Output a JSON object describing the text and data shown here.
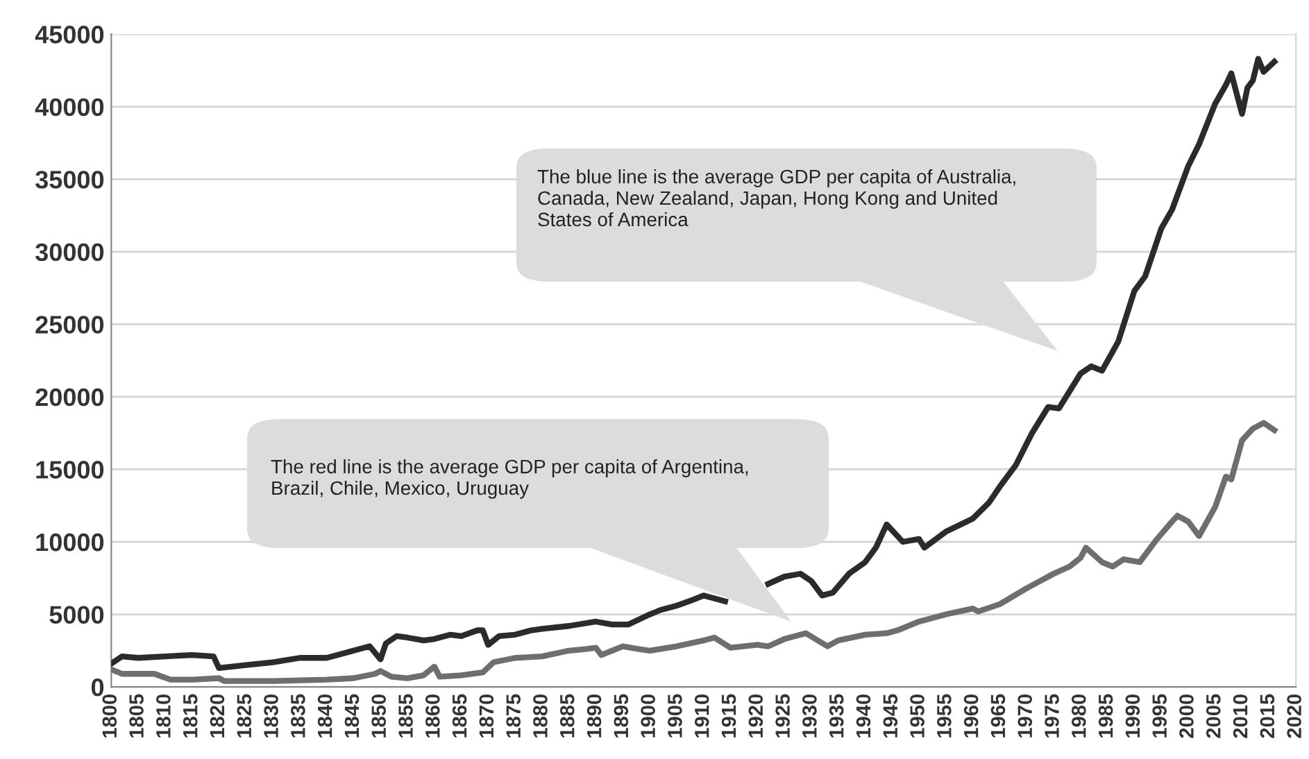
{
  "chart_data": {
    "type": "line",
    "xlim": [
      1800,
      2020
    ],
    "xticks": [
      1800,
      1805,
      1810,
      1815,
      1820,
      1825,
      1830,
      1835,
      1840,
      1845,
      1850,
      1855,
      1860,
      1865,
      1870,
      1875,
      1880,
      1885,
      1890,
      1895,
      1900,
      1905,
      1910,
      1915,
      1920,
      1925,
      1930,
      1935,
      1940,
      1945,
      1950,
      1955,
      1960,
      1965,
      1970,
      1975,
      1980,
      1985,
      1990,
      1995,
      2000,
      2005,
      2010,
      2015,
      2020
    ],
    "ylim": [
      0,
      45000
    ],
    "yticks": [
      0,
      5000,
      10000,
      15000,
      20000,
      25000,
      30000,
      35000,
      40000,
      45000
    ],
    "grid": "y",
    "line_style": "solid",
    "series": [
      {
        "color": "#2b2b2b",
        "x": [
          1800,
          1802,
          1805,
          1810,
          1815,
          1819,
          1820,
          1825,
          1830,
          1835,
          1840,
          1845,
          1848,
          1850,
          1851,
          1853,
          1855,
          1858,
          1860,
          1863,
          1865,
          1868,
          1869,
          1870,
          1872,
          1875,
          1878,
          1880,
          1885,
          1890,
          1893,
          1896,
          1900,
          1902,
          1905,
          1908,
          1910,
          1912,
          1914,
          1916,
          1919,
          1922,
          1925,
          1928,
          1930,
          1932,
          1934,
          1937,
          1940,
          1942,
          1944,
          1947,
          1950,
          1951,
          1955,
          1960,
          1963,
          1965,
          1968,
          1971,
          1974,
          1976,
          1980,
          1982,
          1984,
          1987,
          1990,
          1992,
          1995,
          1997,
          2000,
          2002,
          2005,
          2007,
          2008,
          2010,
          2011,
          2012,
          2013,
          2014,
          2016
        ],
        "values": [
          1600,
          2100,
          2000,
          2100,
          2200,
          2100,
          1300,
          1500,
          1700,
          2000,
          2000,
          2500,
          2800,
          1900,
          3000,
          3500,
          3400,
          3200,
          3300,
          3600,
          3500,
          3900,
          3900,
          2900,
          3500,
          3600,
          3900,
          4000,
          4200,
          4500,
          4300,
          4300,
          5000,
          5300,
          5600,
          6000,
          6300,
          6100,
          5900,
          null,
          null,
          7100,
          7600,
          7800,
          7300,
          6300,
          6500,
          7800,
          8600,
          9600,
          11200,
          10000,
          10200,
          9600,
          10700,
          11600,
          12700,
          13800,
          15300,
          17500,
          19300,
          19200,
          21600,
          22100,
          21800,
          23800,
          27300,
          28300,
          31600,
          32900,
          35900,
          37400,
          40200,
          41500,
          42300,
          39500,
          41300,
          41800,
          43300,
          42400,
          43100
        ]
      },
      {
        "color": "#6e6e6e",
        "x": [
          1800,
          1802,
          1808,
          1811,
          1815,
          1820,
          1821,
          1830,
          1840,
          1845,
          1849,
          1850,
          1852,
          1855,
          1858,
          1860,
          1861,
          1865,
          1869,
          1871,
          1875,
          1880,
          1885,
          1888,
          1890,
          1891,
          1895,
          1898,
          1900,
          1905,
          1910,
          1912,
          1915,
          1920,
          1922,
          1925,
          1929,
          1933,
          1935,
          1940,
          1944,
          1946,
          1950,
          1955,
          1960,
          1961,
          1965,
          1970,
          1975,
          1978,
          1980,
          1981,
          1984,
          1986,
          1988,
          1991,
          1994,
          1997,
          1998,
          2000,
          2002,
          2005,
          2007,
          2008,
          2010,
          2012,
          2014,
          2016
        ],
        "values": [
          1200,
          900,
          900,
          500,
          500,
          600,
          400,
          400,
          500,
          600,
          900,
          1100,
          700,
          600,
          800,
          1400,
          700,
          800,
          1000,
          1700,
          2000,
          2100,
          2500,
          2600,
          2700,
          2200,
          2800,
          2600,
          2500,
          2800,
          3200,
          3400,
          2700,
          2900,
          2800,
          3300,
          3700,
          2800,
          3200,
          3600,
          3700,
          3900,
          4500,
          5000,
          5400,
          5200,
          5700,
          6800,
          7800,
          8300,
          8900,
          9600,
          8600,
          8300,
          8800,
          8600,
          10100,
          11400,
          11800,
          11400,
          10400,
          12400,
          14500,
          14300,
          17000,
          17800,
          18200,
          17700
        ]
      }
    ],
    "annotations": [
      "The blue line is the average GDP per capita of Australia,\nCanada, New Zealand, Japan, Hong Kong and United\nStates of America",
      "The red line is the average GDP per capita of Argentina,\nBrazil, Chile, Mexico, Uruguay"
    ]
  }
}
